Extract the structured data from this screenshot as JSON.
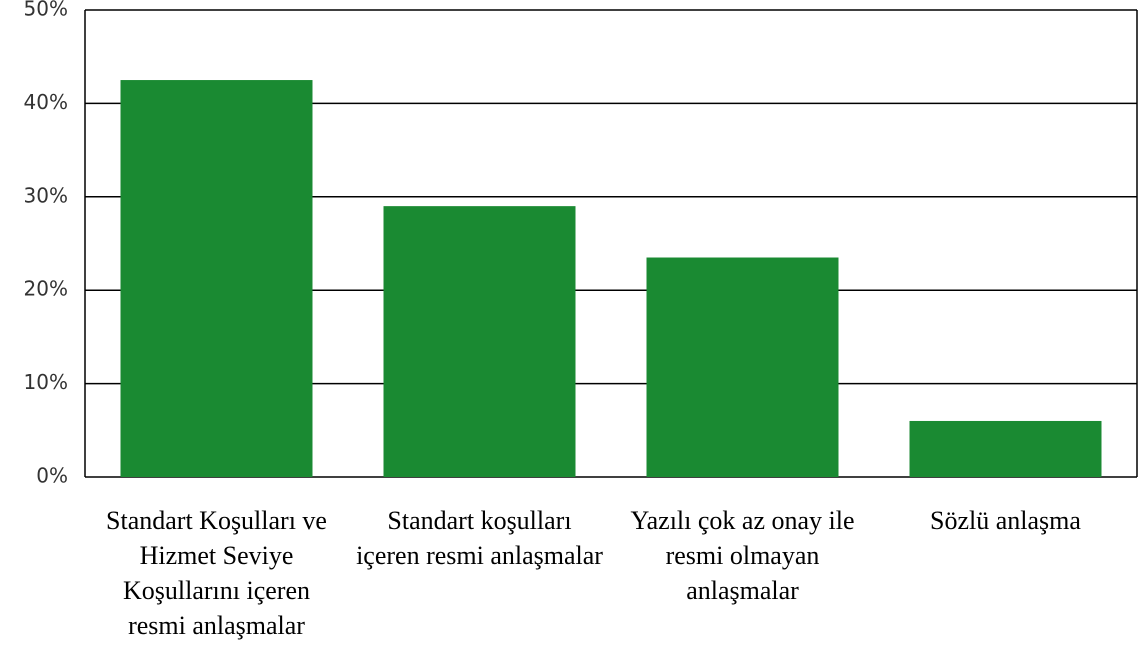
{
  "chart_data": {
    "type": "bar",
    "categories": [
      "Standart Koşulları ve Hizmet Seviye Koşullarını içeren resmi anlaşmalar",
      "Standart koşulları içeren resmi anlaşmalar",
      "Yazılı çok az onay ile resmi olmayan anlaşmalar",
      "Sözlü anlaşma"
    ],
    "values": [
      42.5,
      29,
      23.5,
      6
    ],
    "color": "#1a8a32",
    "ylim": [
      0,
      50
    ],
    "yticks": [
      {
        "value": 0,
        "label": "0%"
      },
      {
        "value": 10,
        "label": "10%"
      },
      {
        "value": 20,
        "label": "20%"
      },
      {
        "value": 30,
        "label": "30%"
      },
      {
        "value": 40,
        "label": "40%"
      },
      {
        "value": 50,
        "label": "50%"
      }
    ],
    "grid": true
  }
}
